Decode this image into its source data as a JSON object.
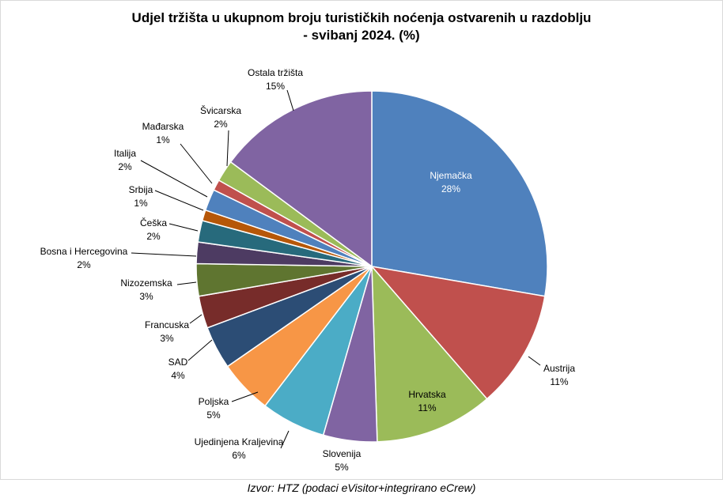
{
  "title_line1": "Udjel tržišta u ukupnom broju turističkih noćenja ostvarenih u razdoblju",
  "title_line2": "- svibanj 2024. (%)",
  "source": "Izvor: HTZ (podaci eVisitor+integrirano eCrew)",
  "chart_data": {
    "type": "pie",
    "title": "Udjel tržišta u ukupnom broju turističkih noćenja ostvarenih u razdoblju - svibanj 2024. (%)",
    "slices": [
      {
        "name": "Njemačka",
        "value": 28,
        "label": "28%",
        "color": "#4f81bd"
      },
      {
        "name": "Austrija",
        "value": 11,
        "label": "11%",
        "color": "#c0504d"
      },
      {
        "name": "Hrvatska",
        "value": 11,
        "label": "11%",
        "color": "#9bbb59"
      },
      {
        "name": "Slovenija",
        "value": 5,
        "label": "5%",
        "color": "#8064a2"
      },
      {
        "name": "Ujedinjena Kraljevina",
        "value": 6,
        "label": "6%",
        "color": "#4bacc6"
      },
      {
        "name": "Poljska",
        "value": 5,
        "label": "5%",
        "color": "#f79646"
      },
      {
        "name": "SAD",
        "value": 4,
        "label": "4%",
        "color": "#2c4d75"
      },
      {
        "name": "Francuska",
        "value": 3,
        "label": "3%",
        "color": "#772c2a"
      },
      {
        "name": "Nizozemska",
        "value": 3,
        "label": "3%",
        "color": "#5f7530"
      },
      {
        "name": "Bosna i Hercegovina",
        "value": 2,
        "label": "2%",
        "color": "#4d3b62"
      },
      {
        "name": "Češka",
        "value": 2,
        "label": "2%",
        "color": "#276a7c"
      },
      {
        "name": "Srbija",
        "value": 1,
        "label": "1%",
        "color": "#b65708"
      },
      {
        "name": "Italija",
        "value": 2,
        "label": "2%",
        "color": "#4f81bd"
      },
      {
        "name": "Mađarska",
        "value": 1,
        "label": "1%",
        "color": "#c0504d"
      },
      {
        "name": "Švicarska",
        "value": 2,
        "label": "2%",
        "color": "#9bbb59"
      },
      {
        "name": "Ostala tržišta",
        "value": 15,
        "label": "15%",
        "color": "#8064a2"
      }
    ]
  }
}
